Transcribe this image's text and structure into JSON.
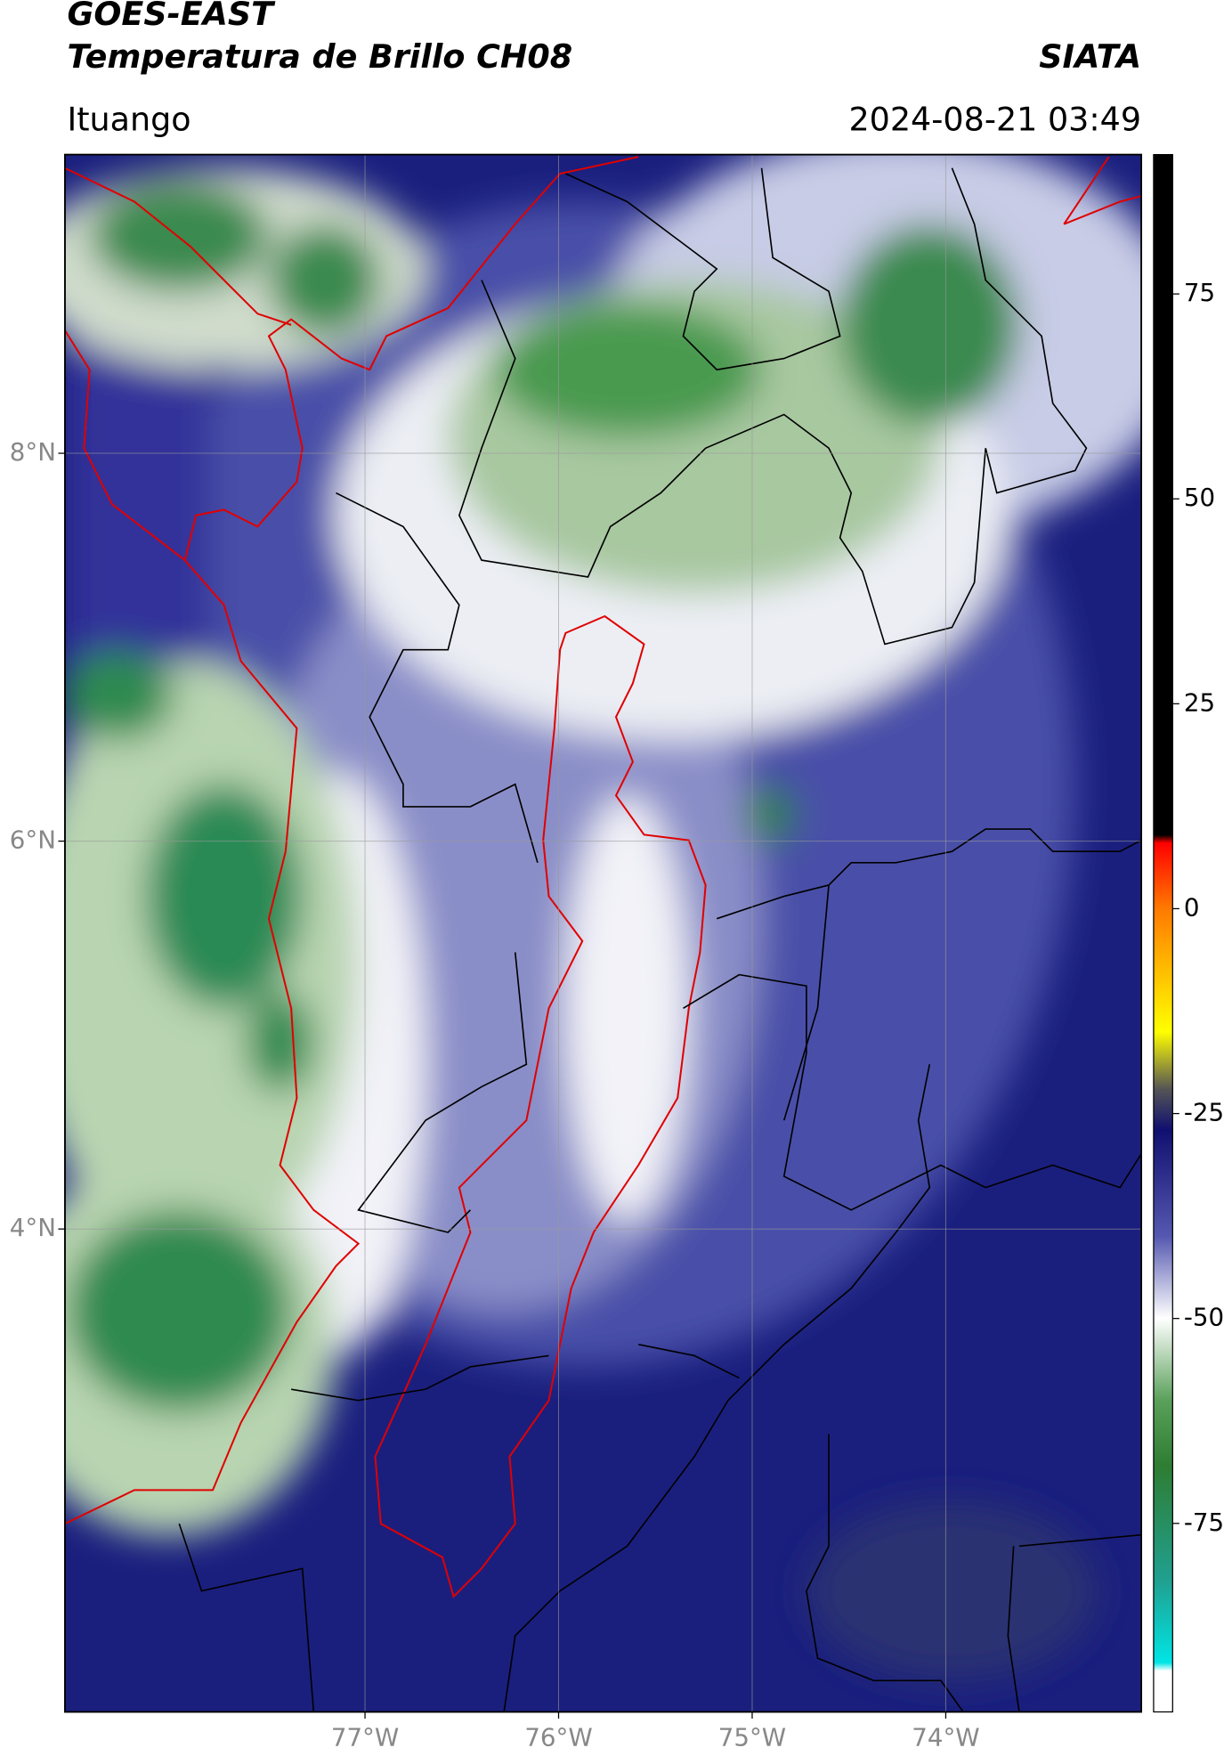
{
  "chart_data": {
    "type": "map",
    "title": "GOES-EAST",
    "subtitle": "Temperatura de Brillo CH08",
    "source": "SIATA",
    "location": "Ituango",
    "datetime": "2024-08-21 03:49",
    "xlim": [
      -78.55,
      -72.99
    ],
    "ylim": [
      1.51,
      9.54
    ],
    "xticks": [
      {
        "value": -77,
        "label": "77°W"
      },
      {
        "value": -76,
        "label": "76°W"
      },
      {
        "value": -75,
        "label": "75°W"
      },
      {
        "value": -74,
        "label": "74°W"
      }
    ],
    "yticks": [
      {
        "value": 8,
        "label": "8°N"
      },
      {
        "value": 6,
        "label": "6°N"
      },
      {
        "value": 4,
        "label": "4°N"
      }
    ],
    "grid": true,
    "colorbar": {
      "ylim": [
        -98,
        92
      ],
      "yticks": [
        75,
        50,
        25,
        0,
        -25,
        -50,
        -75
      ],
      "stops": [
        {
          "value": 92,
          "color": "#000000"
        },
        {
          "value": 9,
          "color": "#000000"
        },
        {
          "value": 8,
          "color": "#ff0000"
        },
        {
          "value": 0,
          "color": "#ff7a00"
        },
        {
          "value": -15,
          "color": "#ffff00"
        },
        {
          "value": -22,
          "color": "#555555"
        },
        {
          "value": -27,
          "color": "#101070"
        },
        {
          "value": -40,
          "color": "#5558b0"
        },
        {
          "value": -50,
          "color": "#ffffff"
        },
        {
          "value": -60,
          "color": "#5aa05a"
        },
        {
          "value": -68,
          "color": "#2e7d32"
        },
        {
          "value": -82,
          "color": "#20a090"
        },
        {
          "value": -92,
          "color": "#00e5e5"
        },
        {
          "value": -93,
          "color": "#ffffff"
        },
        {
          "value": -98,
          "color": "#ffffff"
        }
      ]
    }
  }
}
